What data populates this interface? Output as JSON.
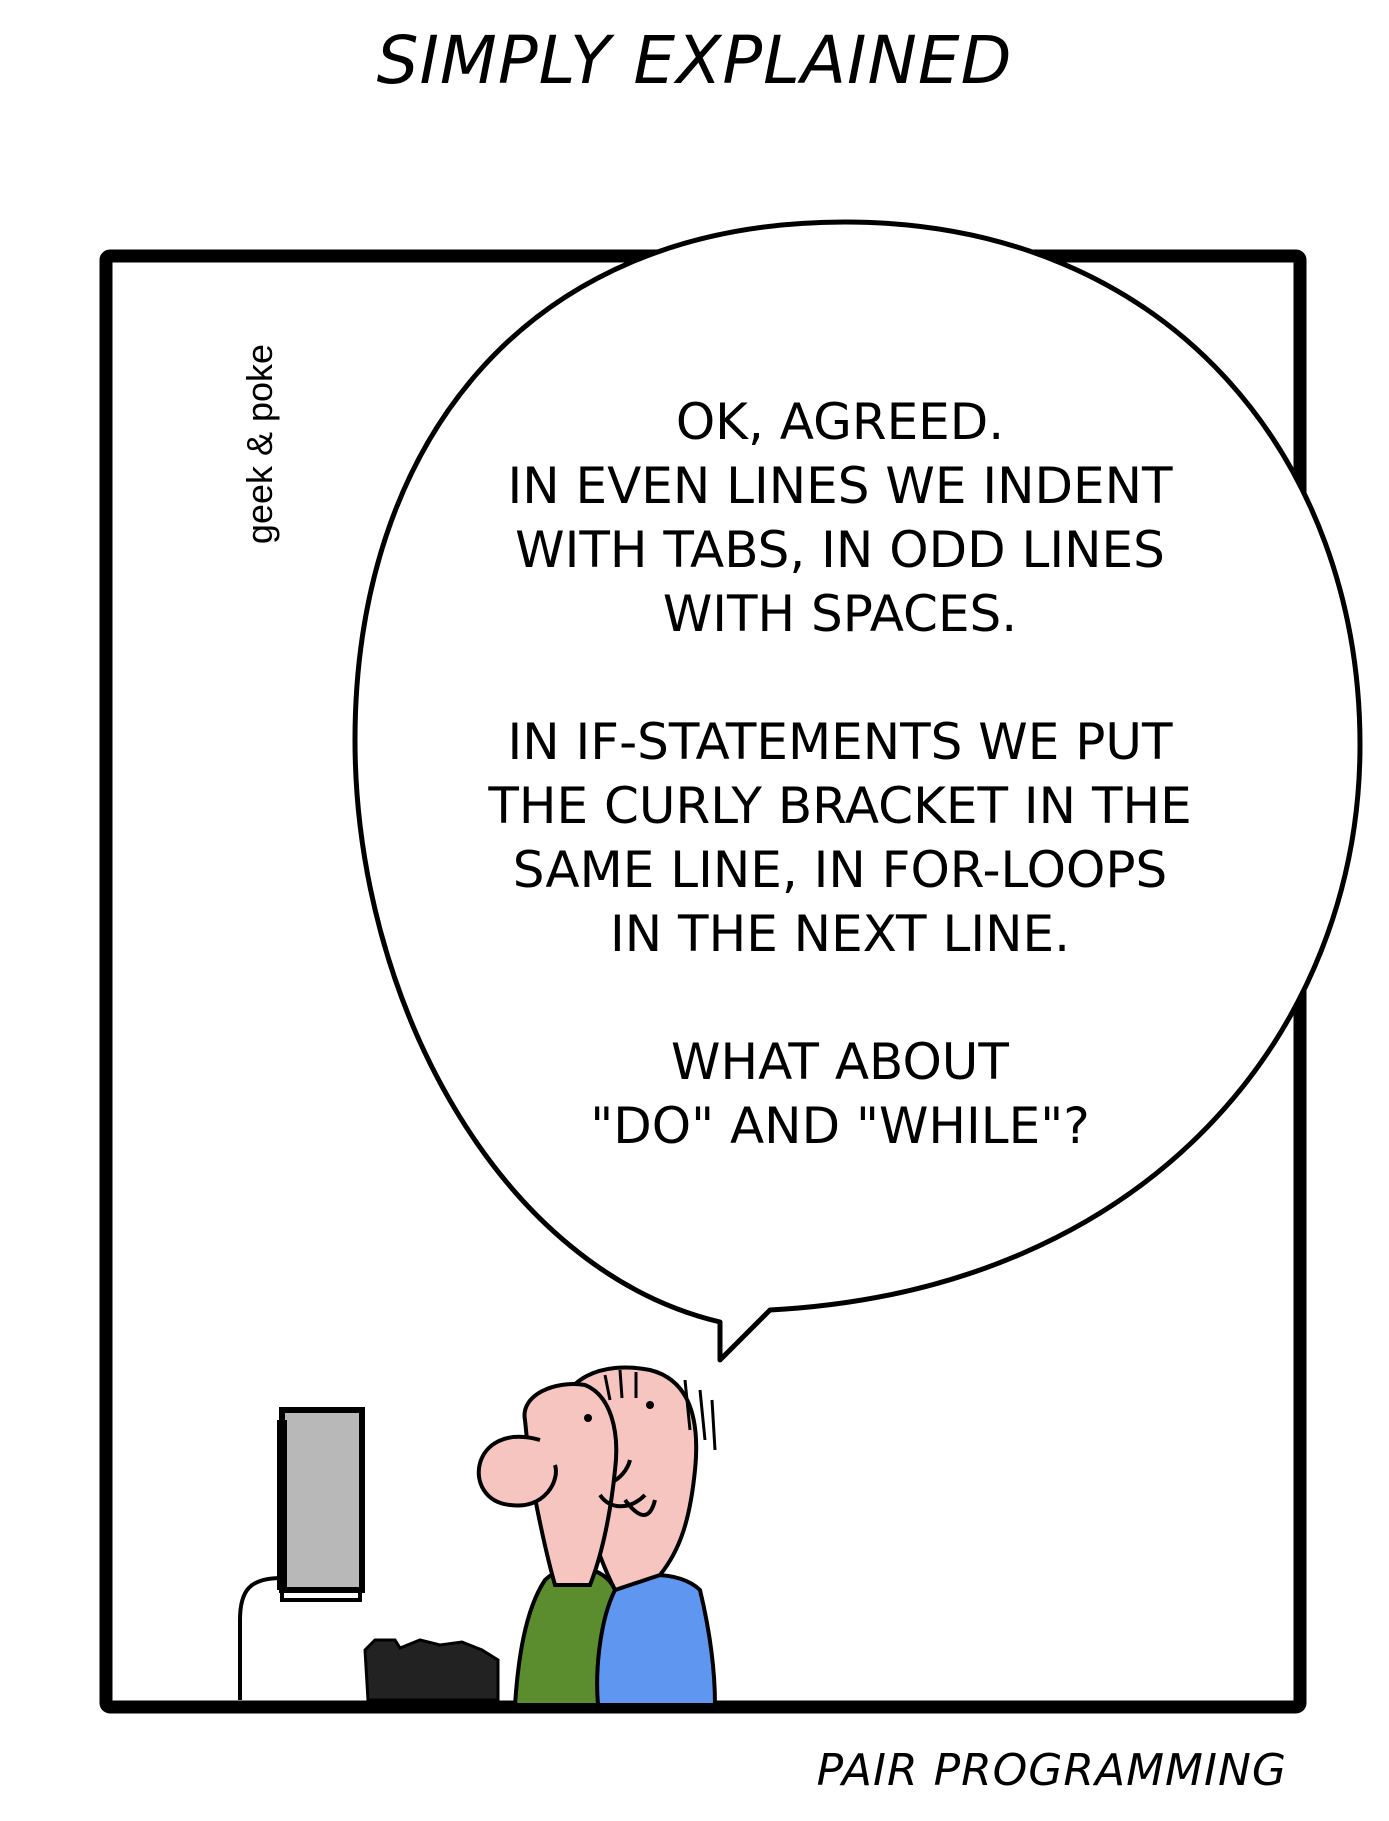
{
  "header": {
    "title": "SIMPLY EXPLAINED"
  },
  "credit": "geek & poke",
  "speech_bubble": {
    "paragraphs": [
      [
        "OK, AGREED.",
        "IN EVEN LINES WE INDENT",
        "WITH TABS, IN ODD LINES",
        "WITH SPACES."
      ],
      [
        "IN IF-STATEMENTS WE PUT",
        "THE CURLY BRACKET IN THE",
        "SAME LINE, IN FOR-LOOPS",
        "IN THE NEXT LINE."
      ],
      [
        "WHAT ABOUT",
        "\"DO\" AND \"WHILE\"?"
      ]
    ]
  },
  "caption": "PAIR PROGRAMMING",
  "colors": {
    "skin": "#F7C5C0",
    "shirt_left": "#5B8C2E",
    "shirt_right": "#5F97F0",
    "monitor": "#B8B8B8",
    "keyboard": "#222222",
    "ink": "#000000"
  }
}
